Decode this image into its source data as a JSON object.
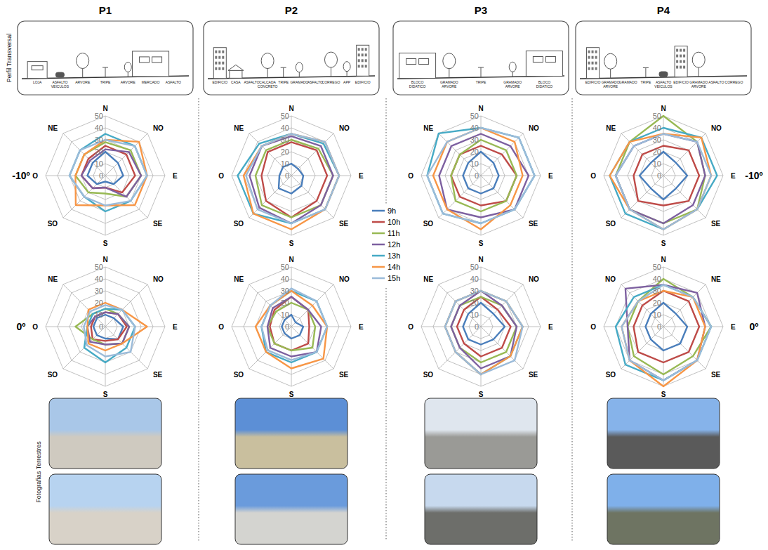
{
  "columns": [
    "P1",
    "P2",
    "P3",
    "P4"
  ],
  "rows": [
    "-10º",
    "0º"
  ],
  "profile_title": "Perfil Transversal",
  "photo_title": "Fotografias Terrestres",
  "profiles": [
    {
      "labels": [
        "LOJA",
        "ASFALTO VEICULOS",
        "ARVORE",
        "TRIPE",
        "ARVORE",
        "MERCADO",
        "ASFALTO"
      ]
    },
    {
      "labels": [
        "EDIFICIO",
        "CASA",
        "ASFALTO",
        "CALCADA CONCRETO",
        "TRIPE",
        "GRAMADO",
        "ASFALTO",
        "CORREGO",
        "APP",
        "EDIFICIO"
      ]
    },
    {
      "labels": [
        "BLOCO DIDATICO",
        "GRAMADO ARVORE",
        "TRIPE",
        "GRAMADO ARVORE",
        "BLOCO DIDATICO"
      ]
    },
    {
      "labels": [
        "EDIFICIO",
        "GRAMADO ARVORE",
        "GRAMADO",
        "TRIPE",
        "ASFALTO VEICULOS",
        "EDIFICIO",
        "GRAMADO ARVORE",
        "ASFALTO",
        "CORREGO"
      ]
    }
  ],
  "chart_data": [
    {
      "type": "radar",
      "categories": [
        "N",
        "NO",
        "E",
        "SE",
        "S",
        "SO",
        "O",
        "NE"
      ],
      "ylim": [
        0,
        50
      ],
      "yticks": [
        0,
        10,
        20,
        30,
        40,
        50
      ],
      "grid": true,
      "series": [
        {
          "name": "9h",
          "color": "#4a7ebb",
          "values": [
            20,
            15,
            15,
            10,
            5,
            10,
            15,
            15
          ]
        },
        {
          "name": "10h",
          "color": "#be4b48",
          "values": [
            25,
            25,
            25,
            20,
            10,
            15,
            20,
            20
          ]
        },
        {
          "name": "11h",
          "color": "#98b954",
          "values": [
            28,
            30,
            30,
            25,
            15,
            20,
            25,
            25
          ]
        },
        {
          "name": "12h",
          "color": "#7d60a0",
          "values": [
            22,
            28,
            30,
            25,
            10,
            15,
            20,
            18
          ]
        },
        {
          "name": "13h",
          "color": "#46aac5",
          "values": [
            35,
            35,
            35,
            30,
            30,
            25,
            30,
            30
          ]
        },
        {
          "name": "14h",
          "color": "#f79646",
          "values": [
            30,
            40,
            35,
            35,
            25,
            35,
            25,
            25
          ]
        },
        {
          "name": "15h",
          "color": "#9bbbd9",
          "values": [
            30,
            35,
            35,
            30,
            25,
            25,
            30,
            30
          ]
        }
      ]
    },
    {
      "type": "radar",
      "categories": [
        "N",
        "NO",
        "E",
        "SE",
        "S",
        "SO",
        "O",
        "NE"
      ],
      "ylim": [
        0,
        50
      ],
      "yticks": [
        0,
        10,
        20,
        30,
        40,
        50
      ],
      "grid": true,
      "series": [
        {
          "name": "9h",
          "color": "#4a7ebb",
          "values": [
            10,
            10,
            15,
            15,
            10,
            10,
            10,
            10
          ]
        },
        {
          "name": "10h",
          "color": "#be4b48",
          "values": [
            12,
            15,
            18,
            15,
            12,
            15,
            12,
            12
          ]
        },
        {
          "name": "11h",
          "color": "#98b954",
          "values": [
            15,
            15,
            20,
            20,
            15,
            15,
            25,
            15
          ]
        },
        {
          "name": "12h",
          "color": "#7d60a0",
          "values": [
            12,
            15,
            20,
            20,
            15,
            18,
            15,
            12
          ]
        },
        {
          "name": "13h",
          "color": "#46aac5",
          "values": [
            15,
            20,
            25,
            25,
            30,
            25,
            15,
            15
          ]
        },
        {
          "name": "14h",
          "color": "#f79646",
          "values": [
            20,
            20,
            35,
            20,
            20,
            20,
            15,
            20
          ]
        },
        {
          "name": "15h",
          "color": "#9bbbd9",
          "values": [
            18,
            20,
            25,
            30,
            25,
            22,
            18,
            18
          ]
        }
      ]
    },
    {
      "type": "radar",
      "categories": [
        "N",
        "NO",
        "E",
        "SE",
        "S",
        "SO",
        "O",
        "NE"
      ],
      "ylim": [
        0,
        50
      ],
      "yticks": [
        0,
        10,
        20,
        30,
        40,
        50
      ],
      "grid": true,
      "series": [
        {
          "name": "9h",
          "color": "#4a7ebb",
          "values": [
            10,
            8,
            10,
            12,
            15,
            15,
            10,
            10
          ]
        },
        {
          "name": "10h",
          "color": "#be4b48",
          "values": [
            28,
            30,
            30,
            30,
            35,
            30,
            25,
            28
          ]
        },
        {
          "name": "11h",
          "color": "#98b954",
          "values": [
            30,
            32,
            35,
            35,
            35,
            35,
            30,
            30
          ]
        },
        {
          "name": "12h",
          "color": "#7d60a0",
          "values": [
            33,
            35,
            35,
            35,
            40,
            38,
            35,
            35
          ]
        },
        {
          "name": "13h",
          "color": "#46aac5",
          "values": [
            35,
            38,
            40,
            40,
            40,
            45,
            45,
            38
          ]
        },
        {
          "name": "14h",
          "color": "#f79646",
          "values": [
            35,
            40,
            40,
            40,
            45,
            45,
            40,
            35
          ]
        },
        {
          "name": "15h",
          "color": "#9bbbd9",
          "values": [
            35,
            40,
            40,
            40,
            40,
            40,
            38,
            35
          ]
        }
      ]
    },
    {
      "type": "radar",
      "categories": [
        "N",
        "NO",
        "E",
        "SE",
        "S",
        "SO",
        "O",
        "NE"
      ],
      "ylim": [
        0,
        50
      ],
      "yticks": [
        0,
        10,
        20,
        30,
        40,
        50
      ],
      "grid": true,
      "series": [
        {
          "name": "9h",
          "color": "#4a7ebb",
          "values": [
            10,
            5,
            10,
            10,
            10,
            8,
            8,
            8
          ]
        },
        {
          "name": "10h",
          "color": "#be4b48",
          "values": [
            25,
            20,
            15,
            20,
            20,
            20,
            18,
            20
          ]
        },
        {
          "name": "11h",
          "color": "#98b954",
          "values": [
            20,
            20,
            20,
            25,
            20,
            20,
            20,
            18
          ]
        },
        {
          "name": "12h",
          "color": "#7d60a0",
          "values": [
            25,
            20,
            25,
            30,
            25,
            25,
            20,
            22
          ]
        },
        {
          "name": "13h",
          "color": "#46aac5",
          "values": [
            30,
            30,
            30,
            30,
            30,
            30,
            25,
            25
          ]
        },
        {
          "name": "14h",
          "color": "#f79646",
          "values": [
            30,
            25,
            30,
            38,
            35,
            30,
            30,
            25
          ]
        },
        {
          "name": "15h",
          "color": "#9bbbd9",
          "values": [
            32,
            30,
            30,
            30,
            28,
            28,
            25,
            25
          ]
        }
      ]
    },
    {
      "type": "radar",
      "categories": [
        "N",
        "NO",
        "E",
        "SE",
        "S",
        "SO",
        "O",
        "NE"
      ],
      "ylim": [
        0,
        50
      ],
      "yticks": [
        0,
        10,
        20,
        30,
        40,
        50
      ],
      "grid": true,
      "series": [
        {
          "name": "9h",
          "color": "#4a7ebb",
          "values": [
            20,
            15,
            15,
            15,
            15,
            15,
            15,
            15
          ]
        },
        {
          "name": "10h",
          "color": "#be4b48",
          "values": [
            25,
            25,
            30,
            30,
            25,
            25,
            25,
            25
          ]
        },
        {
          "name": "11h",
          "color": "#98b954",
          "values": [
            30,
            30,
            30,
            30,
            30,
            30,
            25,
            25
          ]
        },
        {
          "name": "12h",
          "color": "#7d60a0",
          "values": [
            35,
            35,
            40,
            40,
            35,
            40,
            35,
            35
          ]
        },
        {
          "name": "13h",
          "color": "#46aac5",
          "values": [
            40,
            45,
            45,
            40,
            40,
            45,
            45,
            50
          ]
        },
        {
          "name": "14h",
          "color": "#f79646",
          "values": [
            40,
            40,
            35,
            35,
            45,
            40,
            40,
            40
          ]
        },
        {
          "name": "15h",
          "color": "#9bbbd9",
          "values": [
            40,
            45,
            45,
            40,
            40,
            45,
            45,
            40
          ]
        }
      ]
    },
    {
      "type": "radar",
      "categories": [
        "N",
        "NO",
        "E",
        "SE",
        "S",
        "SO",
        "O",
        "NE"
      ],
      "ylim": [
        0,
        50
      ],
      "yticks": [
        0,
        10,
        20,
        30,
        40,
        50
      ],
      "grid": true,
      "series": [
        {
          "name": "9h",
          "color": "#4a7ebb",
          "values": [
            20,
            15,
            20,
            15,
            15,
            15,
            15,
            15
          ]
        },
        {
          "name": "10h",
          "color": "#be4b48",
          "values": [
            25,
            20,
            25,
            25,
            25,
            20,
            20,
            20
          ]
        },
        {
          "name": "11h",
          "color": "#98b954",
          "values": [
            25,
            25,
            30,
            30,
            30,
            25,
            25,
            25
          ]
        },
        {
          "name": "12h",
          "color": "#7d60a0",
          "values": [
            30,
            25,
            30,
            35,
            35,
            25,
            25,
            25
          ]
        },
        {
          "name": "13h",
          "color": "#46aac5",
          "values": [
            30,
            30,
            35,
            35,
            40,
            30,
            30,
            30
          ]
        },
        {
          "name": "14h",
          "color": "#f79646",
          "values": [
            30,
            30,
            35,
            35,
            40,
            30,
            30,
            30
          ]
        },
        {
          "name": "15h",
          "color": "#9bbbd9",
          "values": [
            30,
            30,
            35,
            40,
            40,
            30,
            30,
            30
          ]
        }
      ]
    },
    {
      "type": "radar",
      "categories": [
        "N",
        "NO",
        "E",
        "SE",
        "S",
        "SO",
        "O",
        "NE"
      ],
      "ylim": [
        0,
        50
      ],
      "yticks": [
        0,
        10,
        20,
        30,
        40,
        50
      ],
      "grid": true,
      "series": [
        {
          "name": "9h",
          "color": "#4a7ebb",
          "values": [
            20,
            15,
            20,
            15,
            20,
            15,
            20,
            15
          ]
        },
        {
          "name": "10h",
          "color": "#be4b48",
          "values": [
            25,
            30,
            30,
            30,
            25,
            30,
            25,
            25
          ]
        },
        {
          "name": "11h",
          "color": "#98b954",
          "values": [
            50,
            40,
            35,
            40,
            40,
            40,
            40,
            40
          ]
        },
        {
          "name": "12h",
          "color": "#7d60a0",
          "values": [
            35,
            40,
            35,
            35,
            40,
            40,
            40,
            35
          ]
        },
        {
          "name": "13h",
          "color": "#46aac5",
          "values": [
            40,
            45,
            45,
            40,
            45,
            45,
            45,
            40
          ]
        },
        {
          "name": "14h",
          "color": "#f79646",
          "values": [
            35,
            45,
            40,
            40,
            45,
            40,
            45,
            40
          ]
        },
        {
          "name": "15h",
          "color": "#9bbbd9",
          "values": [
            35,
            40,
            40,
            40,
            45,
            40,
            40,
            35
          ]
        }
      ]
    },
    {
      "type": "radar",
      "categories": [
        "N",
        "NE",
        "E",
        "SE",
        "S",
        "SO",
        "O",
        "NO"
      ],
      "ylim": [
        0,
        50
      ],
      "yticks": [
        0,
        10,
        20,
        30,
        40,
        50
      ],
      "grid": true,
      "series": [
        {
          "name": "9h",
          "color": "#4a7ebb",
          "values": [
            20,
            15,
            20,
            20,
            20,
            15,
            15,
            15
          ]
        },
        {
          "name": "10h",
          "color": "#be4b48",
          "values": [
            30,
            30,
            30,
            30,
            30,
            30,
            25,
            25
          ]
        },
        {
          "name": "11h",
          "color": "#98b954",
          "values": [
            40,
            35,
            40,
            35,
            40,
            35,
            30,
            30
          ]
        },
        {
          "name": "12h",
          "color": "#7d60a0",
          "values": [
            35,
            40,
            35,
            40,
            45,
            40,
            30,
            45
          ]
        },
        {
          "name": "13h",
          "color": "#46aac5",
          "values": [
            35,
            35,
            40,
            40,
            45,
            45,
            40,
            35
          ]
        },
        {
          "name": "14h",
          "color": "#f79646",
          "values": [
            30,
            35,
            35,
            40,
            50,
            40,
            35,
            30
          ]
        },
        {
          "name": "15h",
          "color": "#9bbbd9",
          "values": [
            35,
            35,
            40,
            40,
            45,
            40,
            35,
            30
          ]
        }
      ]
    }
  ]
}
